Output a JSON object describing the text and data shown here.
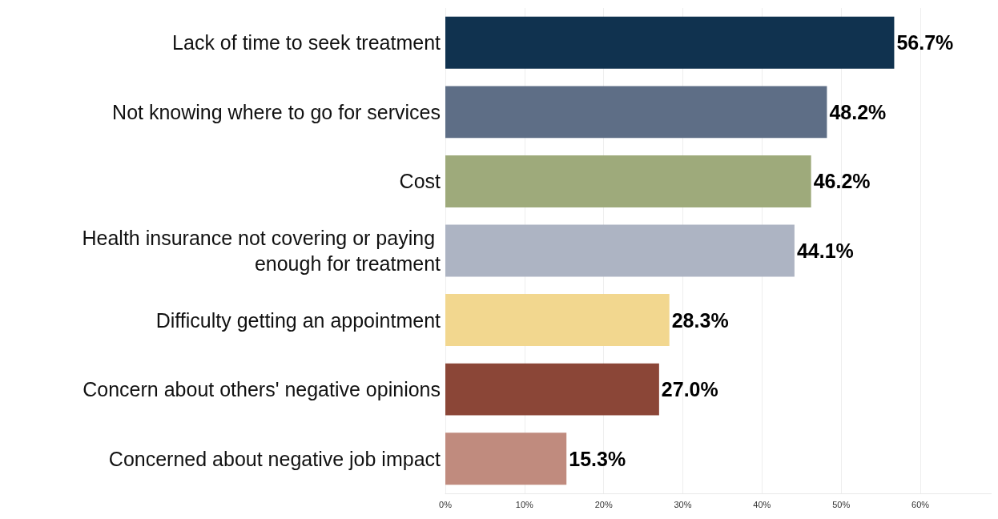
{
  "chart_data": {
    "type": "bar",
    "orientation": "horizontal",
    "categories": [
      "Lack of time to seek treatment",
      "Not knowing where to go for services",
      "Cost",
      "Health insurance not covering or paying enough for treatment",
      "Difficulty getting an appointment",
      "Concern about others' negative opinions",
      "Concerned about negative job impact"
    ],
    "values": [
      56.7,
      48.2,
      46.2,
      44.1,
      28.3,
      27.0,
      15.3
    ],
    "colors": [
      "#10324f",
      "#5e6e86",
      "#9eaa7b",
      "#adb4c3",
      "#f2d78f",
      "#8b4637",
      "#c08b7e"
    ],
    "value_labels": [
      "56.7%",
      "48.2%",
      "46.2%",
      "44.1%",
      "28.3%",
      "27.0%",
      "15.3%"
    ],
    "xlim": [
      0,
      69
    ],
    "xticks": [
      {
        "value": 0,
        "label": "0%"
      },
      {
        "value": 10,
        "label": "10%"
      },
      {
        "value": 20,
        "label": "20%"
      },
      {
        "value": 30,
        "label": "30%"
      },
      {
        "value": 40,
        "label": "40%"
      },
      {
        "value": 50,
        "label": "50%"
      },
      {
        "value": 60,
        "label": "60%"
      }
    ],
    "grid": "x"
  }
}
